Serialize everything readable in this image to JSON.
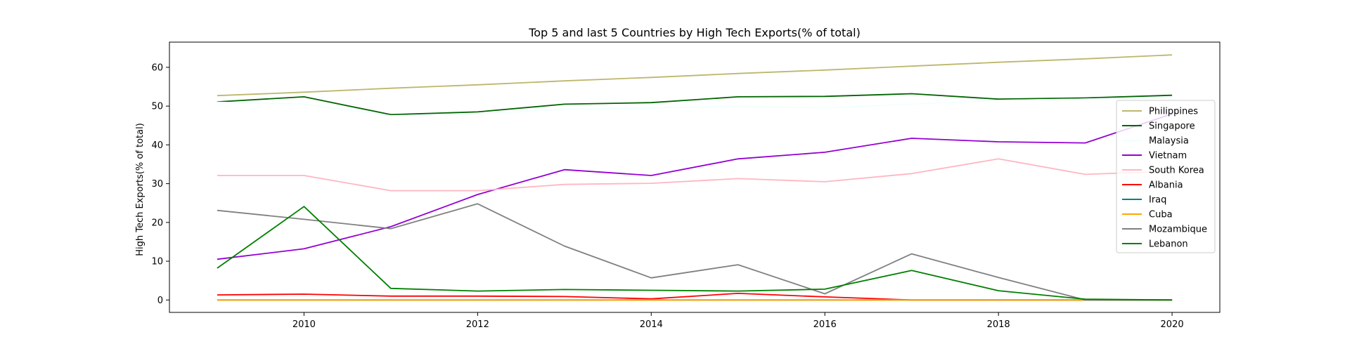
{
  "chart_data": {
    "type": "line",
    "title": "Top 5 and last 5 Countries by High Tech Exports(% of total)",
    "xlabel": "",
    "ylabel": "High Tech Exports(% of total)",
    "xlim": [
      2008.45,
      2020.55
    ],
    "ylim": [
      -3.2,
      66.5
    ],
    "xticks": [
      2010,
      2012,
      2014,
      2016,
      2018,
      2020
    ],
    "yticks": [
      0,
      10,
      20,
      30,
      40,
      50,
      60
    ],
    "grid": false,
    "legend_position": "right",
    "x": [
      2009,
      2010,
      2011,
      2012,
      2013,
      2014,
      2015,
      2016,
      2017,
      2018,
      2019,
      2020
    ],
    "series": [
      {
        "name": "Philippines",
        "color": "#bdb76b",
        "values": [
          52.7,
          53.6,
          54.6,
          55.5,
          56.5,
          57.4,
          58.4,
          59.3,
          60.3,
          61.3,
          62.2,
          63.2
        ]
      },
      {
        "name": "Singapore",
        "color": "#006400",
        "values": [
          51.1,
          52.4,
          47.8,
          48.5,
          50.5,
          50.9,
          52.4,
          52.5,
          53.2,
          51.8,
          52.1,
          52.8
        ]
      },
      {
        "name": "Malaysia",
        "color": "#f0ffff",
        "values": [
          51.0,
          50.5,
          47.5,
          48.0,
          49.2,
          49.5,
          50.0,
          49.5,
          50.5,
          51.5,
          51.8,
          52.3
        ]
      },
      {
        "name": "Vietnam",
        "color": "#9400d3",
        "values": [
          10.5,
          13.2,
          18.9,
          27.2,
          33.6,
          32.1,
          36.4,
          38.1,
          41.7,
          40.8,
          40.5,
          48.0
        ]
      },
      {
        "name": "South Korea",
        "color": "#ffb6c1",
        "values": [
          32.1,
          32.1,
          28.2,
          28.2,
          29.8,
          30.1,
          31.3,
          30.5,
          32.6,
          36.4,
          32.4,
          33.2
        ]
      },
      {
        "name": "Albania",
        "color": "#ff0000",
        "values": [
          1.3,
          1.5,
          1.0,
          1.0,
          0.9,
          0.3,
          1.7,
          0.8,
          0.0,
          0.0,
          0.0,
          0.0
        ]
      },
      {
        "name": "Iraq",
        "color": "#008080",
        "values": [
          0.0,
          0.0,
          0.0,
          0.0,
          0.0,
          0.0,
          0.0,
          0.0,
          0.0,
          0.0,
          0.0,
          0.0
        ]
      },
      {
        "name": "Cuba",
        "color": "#ffa500",
        "values": [
          0.0,
          0.0,
          0.0,
          0.0,
          0.0,
          0.0,
          0.0,
          0.0,
          0.0,
          0.0,
          0.0,
          0.0
        ]
      },
      {
        "name": "Mozambique",
        "color": "#808080",
        "values": [
          23.1,
          20.8,
          18.4,
          24.8,
          13.9,
          5.7,
          9.1,
          1.6,
          11.9,
          5.8,
          0.0,
          0.0
        ]
      },
      {
        "name": "Lebanon",
        "color": "#008000",
        "values": [
          8.2,
          24.1,
          3.0,
          2.3,
          2.7,
          2.5,
          2.3,
          2.8,
          7.6,
          2.4,
          0.2,
          0.0
        ]
      }
    ]
  }
}
